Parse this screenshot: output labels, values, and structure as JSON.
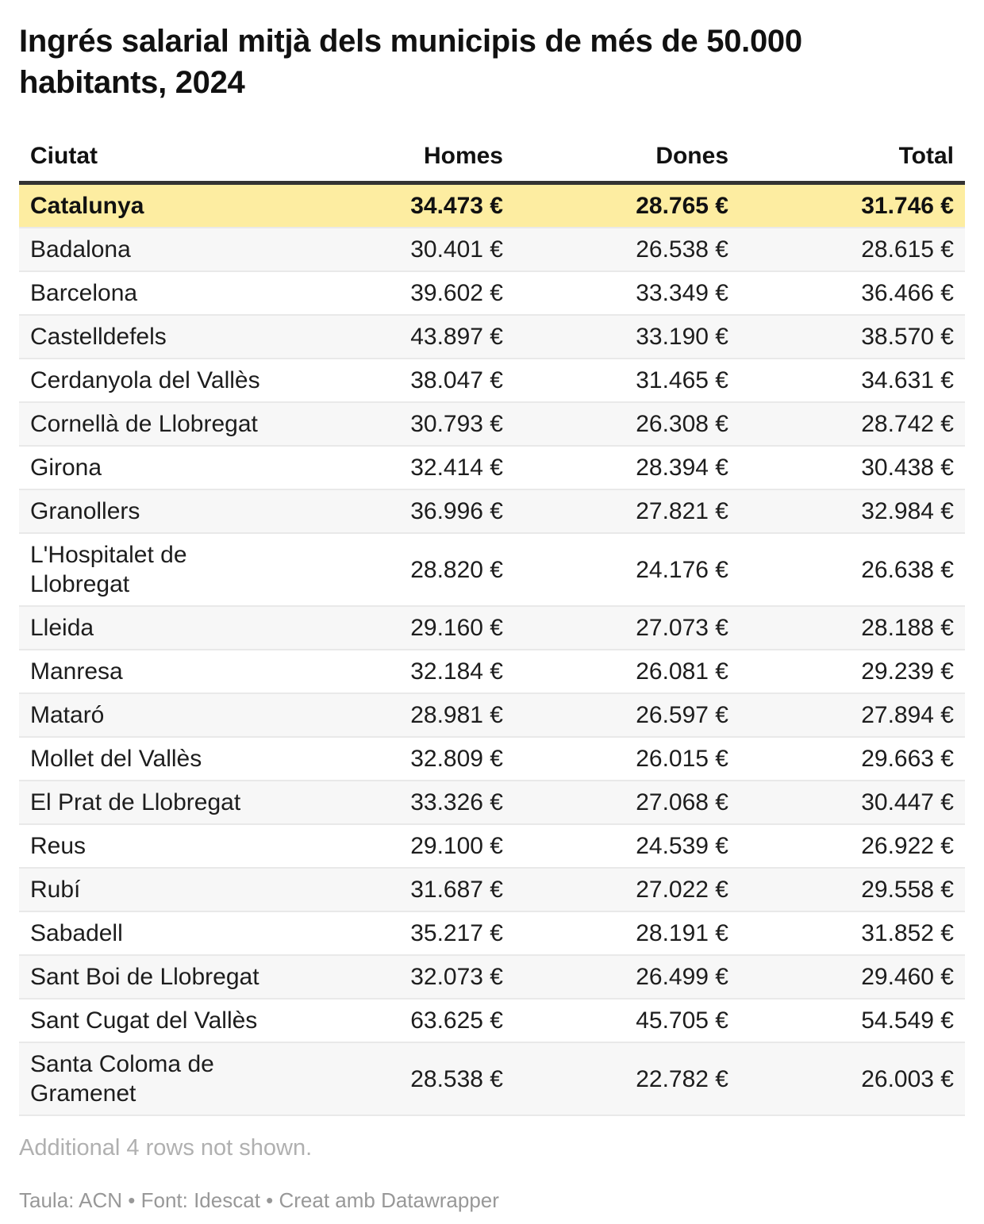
{
  "title": "Ingrés salarial mitjà dels municipis de més de 50.000 habitants, 2024",
  "table": {
    "headers": {
      "city": "Ciutat",
      "homes": "Homes",
      "dones": "Dones",
      "total": "Total"
    },
    "rows": [
      {
        "city": "Catalunya",
        "homes": "34.473 €",
        "dones": "28.765 €",
        "total": "31.746 €",
        "highlight": true
      },
      {
        "city": "Badalona",
        "homes": "30.401 €",
        "dones": "26.538 €",
        "total": "28.615 €",
        "highlight": false
      },
      {
        "city": "Barcelona",
        "homes": "39.602 €",
        "dones": "33.349 €",
        "total": "36.466 €",
        "highlight": false
      },
      {
        "city": "Castelldefels",
        "homes": "43.897 €",
        "dones": "33.190 €",
        "total": "38.570 €",
        "highlight": false
      },
      {
        "city": "Cerdanyola del Vallès",
        "homes": "38.047 €",
        "dones": "31.465 €",
        "total": "34.631 €",
        "highlight": false
      },
      {
        "city": "Cornellà de Llobregat",
        "homes": "30.793 €",
        "dones": "26.308 €",
        "total": "28.742 €",
        "highlight": false
      },
      {
        "city": "Girona",
        "homes": "32.414 €",
        "dones": "28.394 €",
        "total": "30.438 €",
        "highlight": false
      },
      {
        "city": "Granollers",
        "homes": "36.996 €",
        "dones": "27.821 €",
        "total": "32.984 €",
        "highlight": false
      },
      {
        "city": "L'Hospitalet de Llobregat",
        "homes": "28.820 €",
        "dones": "24.176 €",
        "total": "26.638 €",
        "highlight": false
      },
      {
        "city": "Lleida",
        "homes": "29.160 €",
        "dones": "27.073 €",
        "total": "28.188 €",
        "highlight": false
      },
      {
        "city": "Manresa",
        "homes": "32.184 €",
        "dones": "26.081 €",
        "total": "29.239 €",
        "highlight": false
      },
      {
        "city": "Mataró",
        "homes": "28.981 €",
        "dones": "26.597 €",
        "total": "27.894 €",
        "highlight": false
      },
      {
        "city": "Mollet del Vallès",
        "homes": "32.809 €",
        "dones": "26.015 €",
        "total": "29.663 €",
        "highlight": false
      },
      {
        "city": "El Prat de Llobregat",
        "homes": "33.326 €",
        "dones": "27.068 €",
        "total": "30.447 €",
        "highlight": false
      },
      {
        "city": "Reus",
        "homes": "29.100 €",
        "dones": "24.539 €",
        "total": "26.922 €",
        "highlight": false
      },
      {
        "city": "Rubí",
        "homes": "31.687 €",
        "dones": "27.022 €",
        "total": "29.558 €",
        "highlight": false
      },
      {
        "city": "Sabadell",
        "homes": "35.217 €",
        "dones": "28.191 €",
        "total": "31.852 €",
        "highlight": false
      },
      {
        "city": "Sant Boi de Llobregat",
        "homes": "32.073 €",
        "dones": "26.499 €",
        "total": "29.460 €",
        "highlight": false
      },
      {
        "city": "Sant Cugat del Vallès",
        "homes": "63.625 €",
        "dones": "45.705 €",
        "total": "54.549 €",
        "highlight": false
      },
      {
        "city": "Santa Coloma de Gramenet",
        "homes": "28.538 €",
        "dones": "22.782 €",
        "total": "26.003 €",
        "highlight": false
      }
    ]
  },
  "notes": {
    "additional_rows": "Additional 4 rows not shown."
  },
  "footer": {
    "credits": "Taula: ACN • Font: Idescat • Creat amb Datawrapper"
  },
  "colors": {
    "highlight_row_bg": "#fdeda1",
    "stripe_row_bg": "#f7f7f7",
    "header_border": "#333333",
    "row_border": "#e9e9e9",
    "body_text": "#1d1d1d",
    "title_text": "#111111",
    "note_text": "#b0b0b0",
    "credits_text": "#989898"
  },
  "chart_data": {
    "type": "table",
    "title": "Ingrés salarial mitjà dels municipis de més de 50.000 habitants, 2024",
    "columns": [
      "Ciutat",
      "Homes",
      "Dones",
      "Total"
    ],
    "unit": "€",
    "highlighted_row": "Catalunya",
    "rows": [
      {
        "ciutat": "Catalunya",
        "homes": 34473,
        "dones": 28765,
        "total": 31746
      },
      {
        "ciutat": "Badalona",
        "homes": 30401,
        "dones": 26538,
        "total": 28615
      },
      {
        "ciutat": "Barcelona",
        "homes": 39602,
        "dones": 33349,
        "total": 36466
      },
      {
        "ciutat": "Castelldefels",
        "homes": 43897,
        "dones": 33190,
        "total": 38570
      },
      {
        "ciutat": "Cerdanyola del Vallès",
        "homes": 38047,
        "dones": 31465,
        "total": 34631
      },
      {
        "ciutat": "Cornellà de Llobregat",
        "homes": 30793,
        "dones": 26308,
        "total": 28742
      },
      {
        "ciutat": "Girona",
        "homes": 32414,
        "dones": 28394,
        "total": 30438
      },
      {
        "ciutat": "Granollers",
        "homes": 36996,
        "dones": 27821,
        "total": 32984
      },
      {
        "ciutat": "L'Hospitalet de Llobregat",
        "homes": 28820,
        "dones": 24176,
        "total": 26638
      },
      {
        "ciutat": "Lleida",
        "homes": 29160,
        "dones": 27073,
        "total": 28188
      },
      {
        "ciutat": "Manresa",
        "homes": 32184,
        "dones": 26081,
        "total": 29239
      },
      {
        "ciutat": "Mataró",
        "homes": 28981,
        "dones": 26597,
        "total": 27894
      },
      {
        "ciutat": "Mollet del Vallès",
        "homes": 32809,
        "dones": 26015,
        "total": 29663
      },
      {
        "ciutat": "El Prat de Llobregat",
        "homes": 33326,
        "dones": 27068,
        "total": 30447
      },
      {
        "ciutat": "Reus",
        "homes": 29100,
        "dones": 24539,
        "total": 26922
      },
      {
        "ciutat": "Rubí",
        "homes": 31687,
        "dones": 27022,
        "total": 29558
      },
      {
        "ciutat": "Sabadell",
        "homes": 35217,
        "dones": 28191,
        "total": 31852
      },
      {
        "ciutat": "Sant Boi de Llobregat",
        "homes": 32073,
        "dones": 26499,
        "total": 29460
      },
      {
        "ciutat": "Sant Cugat del Vallès",
        "homes": 63625,
        "dones": 45705,
        "total": 54549
      },
      {
        "ciutat": "Santa Coloma de Gramenet",
        "homes": 28538,
        "dones": 22782,
        "total": 26003
      }
    ],
    "note": "Additional 4 rows not shown.",
    "source": "Taula: ACN • Font: Idescat • Creat amb Datawrapper"
  }
}
